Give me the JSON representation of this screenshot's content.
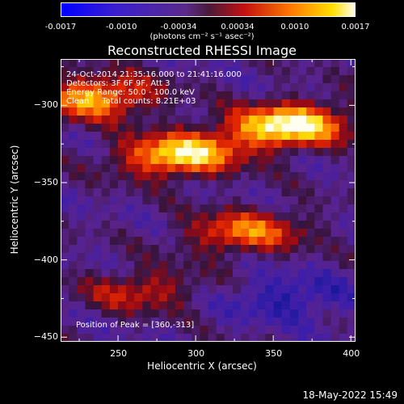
{
  "title": "Reconstructed RHESSI Image",
  "colorbar": {
    "tick_labels": [
      "-0.0017",
      "-0.0010",
      "-0.00034",
      "0.00034",
      "0.0010",
      "0.0017"
    ],
    "tick_values": [
      -0.0017,
      -0.001,
      -0.00034,
      0.00034,
      0.001,
      0.0017
    ],
    "range": [
      -0.0017,
      0.0017
    ],
    "units": "(photons cm⁻² s⁻¹ asec⁻²)"
  },
  "info": {
    "time": "24-Oct-2014 21:35:16.000 to 21:41:16.000",
    "detectors": "Detectors: 3F 6F 9F, Att 3",
    "energy": "Energy Range: 50.0 - 100.0 keV",
    "clean": "Clean     Total counts: 8.21E+03",
    "peak": "Position of Peak = [360,-313]"
  },
  "footer_date": "18-May-2022 15:49",
  "chart_data": {
    "type": "heatmap",
    "title": "Reconstructed RHESSI Image",
    "xlabel": "Heliocentric X (arcsec)",
    "ylabel": "Heliocentric Y (arcsec)",
    "xlim": [
      213,
      403
    ],
    "ylim": [
      -453,
      -270
    ],
    "x_ticks": [
      250,
      300,
      350,
      400
    ],
    "y_ticks": [
      -300,
      -350,
      -400,
      -450
    ],
    "colormap": "black-purple-red-yellow-white",
    "peak": [
      360,
      -313
    ],
    "bright_regions": [
      {
        "x": 360,
        "y": -313,
        "level": 1.0
      },
      {
        "x": 290,
        "y": -332,
        "level": 0.9
      },
      {
        "x": 235,
        "y": -295,
        "level": 0.75
      },
      {
        "x": 332,
        "y": -382,
        "level": 0.6
      },
      {
        "x": 265,
        "y": -420,
        "level": 0.4
      }
    ]
  }
}
